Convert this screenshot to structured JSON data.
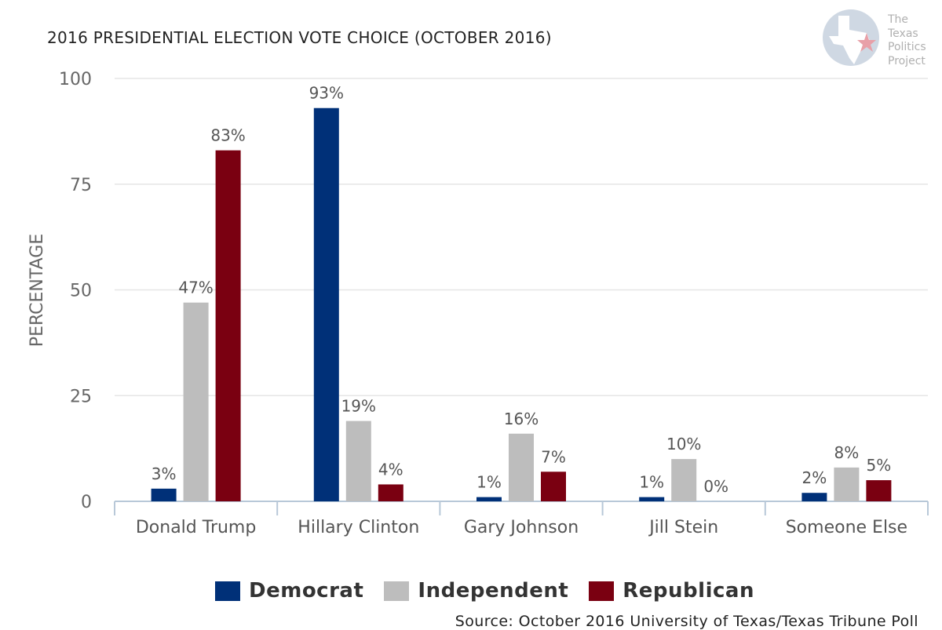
{
  "chart_data": {
    "type": "bar",
    "title": "2016 PRESIDENTIAL ELECTION VOTE CHOICE (OCTOBER 2016)",
    "ylabel": "PERCENTAGE",
    "xlabel": "",
    "ylim": [
      0,
      100
    ],
    "yticks": [
      0,
      25,
      50,
      75,
      100
    ],
    "grid": true,
    "legend_position": "bottom",
    "categories": [
      "Donald Trump",
      "Hillary Clinton",
      "Gary Johnson",
      "Jill Stein",
      "Someone Else"
    ],
    "series": [
      {
        "name": "Democrat",
        "color": "#003078",
        "values": [
          3,
          93,
          1,
          1,
          2
        ],
        "labels": [
          "3%",
          "93%",
          "1%",
          "1%",
          "2%"
        ]
      },
      {
        "name": "Independent",
        "color": "#bdbdbd",
        "values": [
          47,
          19,
          16,
          10,
          8
        ],
        "labels": [
          "47%",
          "19%",
          "16%",
          "10%",
          "8%"
        ]
      },
      {
        "name": "Republican",
        "color": "#7a0011",
        "values": [
          83,
          4,
          7,
          0,
          5
        ],
        "labels": [
          "83%",
          "4%",
          "7%",
          "0%",
          "5%"
        ]
      }
    ],
    "source": "Source: October 2016 University of Texas/Texas Tribune Poll"
  },
  "logo": {
    "lines": [
      "The",
      "Texas",
      "Politics",
      "Project"
    ],
    "icon": "texas-star-logo-icon",
    "colors": {
      "circle": "#cfd8e3",
      "star": "#e8a0a8"
    }
  }
}
